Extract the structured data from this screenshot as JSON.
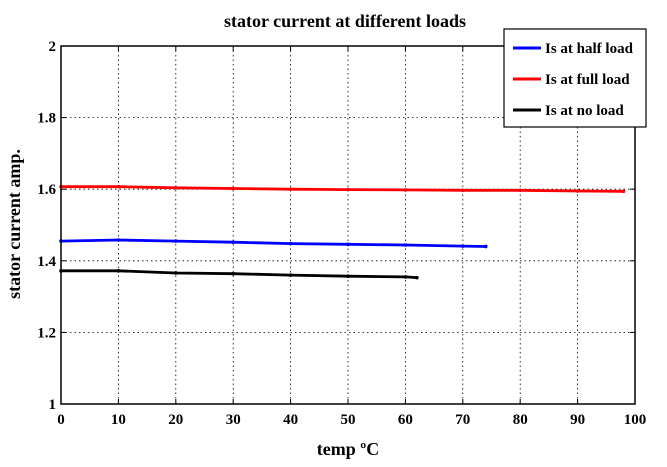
{
  "chart_data": {
    "type": "line",
    "title": "stator current at different loads",
    "xlabel": "temp ºC",
    "ylabel": "stator current amp.",
    "xlim": [
      0,
      100
    ],
    "ylim": [
      1,
      2
    ],
    "x_ticks": [
      0,
      10,
      20,
      30,
      40,
      50,
      60,
      70,
      80,
      90,
      100
    ],
    "y_ticks": [
      1,
      1.2,
      1.4,
      1.6,
      1.8,
      2
    ],
    "grid": true,
    "legend_position": "top-right",
    "series": [
      {
        "name": "Is at half load",
        "color": "#0000ff",
        "x": [
          0,
          10,
          20,
          30,
          40,
          50,
          60,
          70,
          74
        ],
        "y": [
          1.455,
          1.458,
          1.455,
          1.452,
          1.448,
          1.446,
          1.444,
          1.441,
          1.44
        ]
      },
      {
        "name": "Is at full load",
        "color": "#ff0000",
        "x": [
          0,
          10,
          20,
          30,
          40,
          50,
          60,
          70,
          80,
          90,
          98
        ],
        "y": [
          1.607,
          1.607,
          1.604,
          1.602,
          1.6,
          1.599,
          1.598,
          1.597,
          1.597,
          1.595,
          1.594
        ]
      },
      {
        "name": "Is at no load",
        "color": "#000000",
        "x": [
          0,
          10,
          20,
          30,
          40,
          50,
          60,
          62
        ],
        "y": [
          1.372,
          1.372,
          1.366,
          1.364,
          1.36,
          1.357,
          1.355,
          1.353
        ]
      }
    ]
  }
}
